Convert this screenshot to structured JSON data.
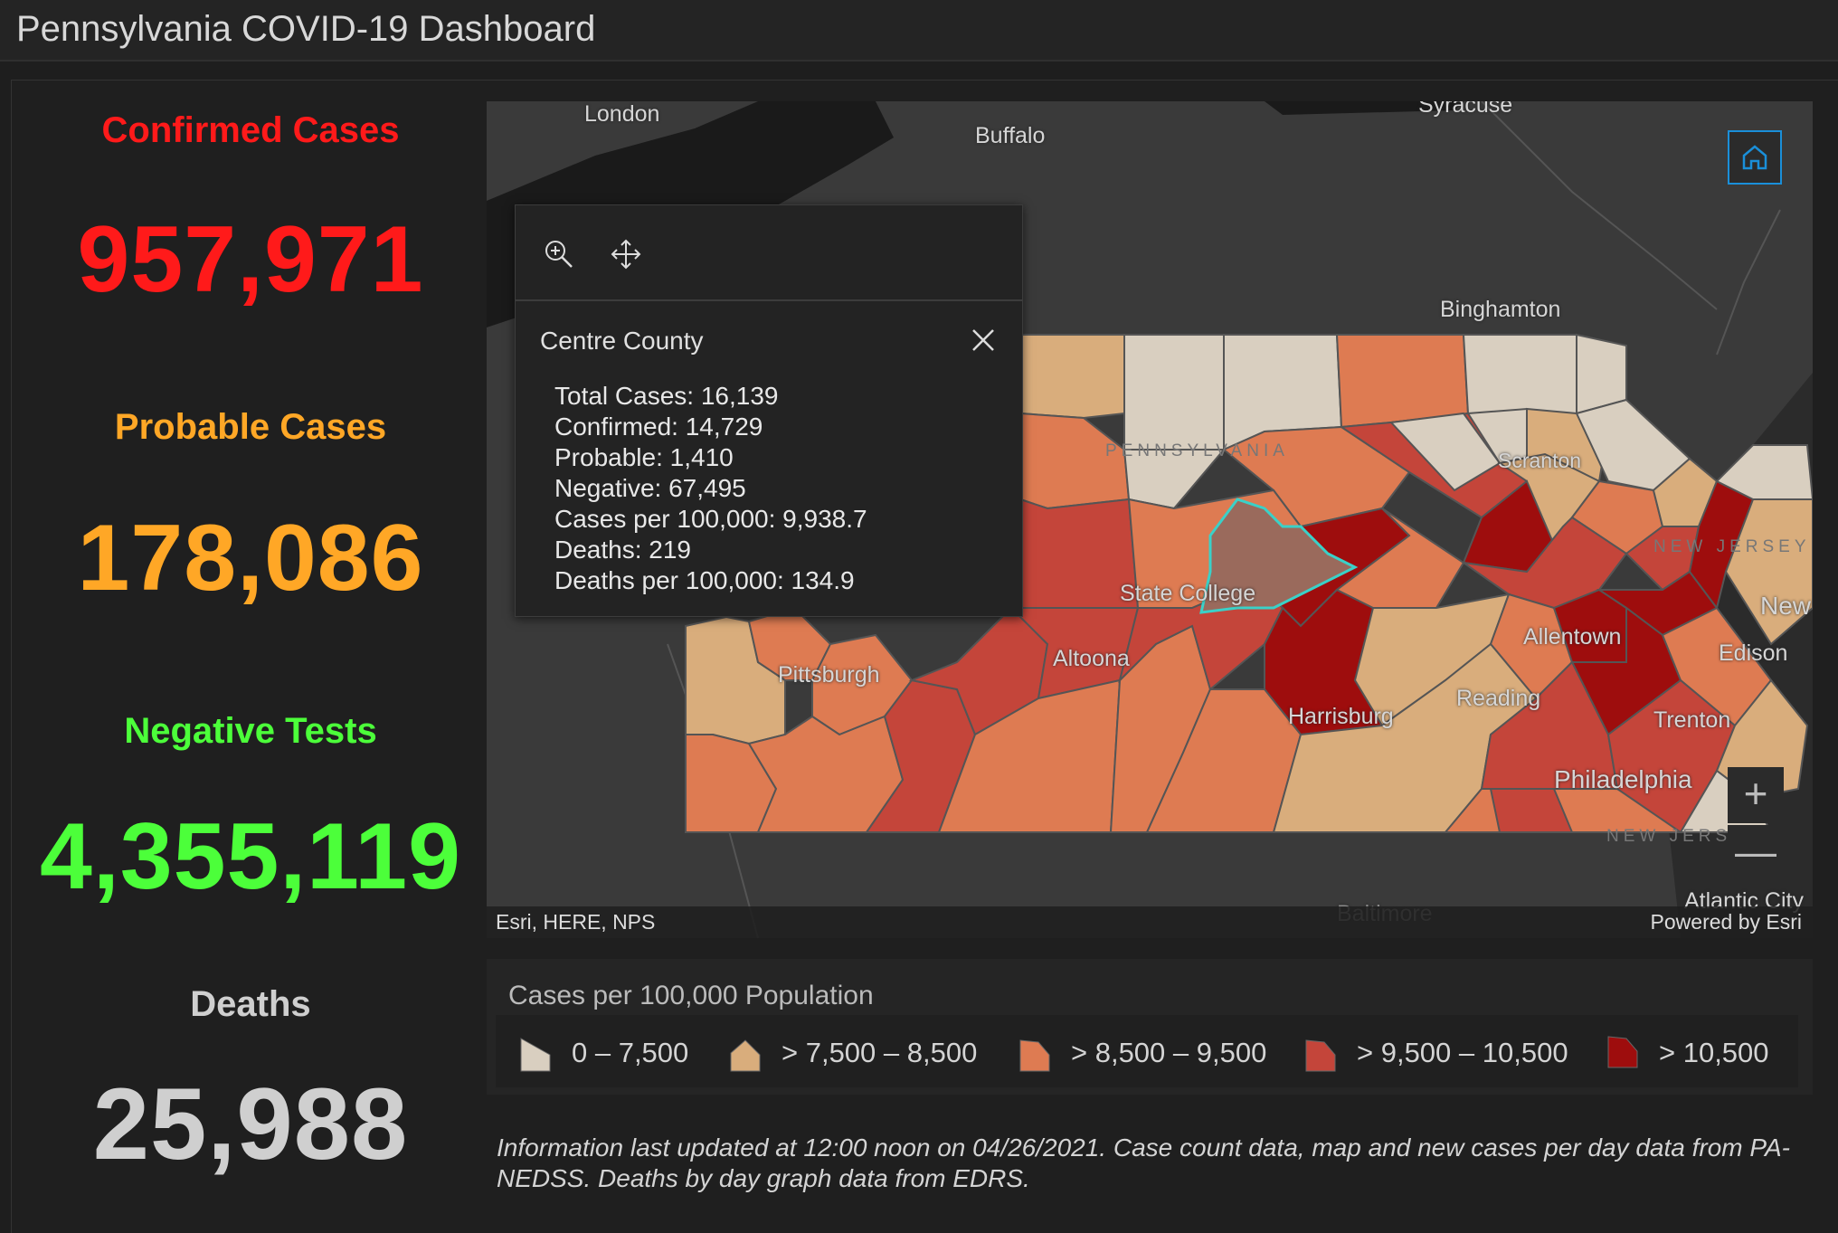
{
  "app": {
    "title": "Pennsylvania COVID-19 Dashboard"
  },
  "stats": {
    "confirmed": {
      "label": "Confirmed Cases",
      "value": "957,971",
      "color": "#ff1a1a"
    },
    "probable": {
      "label": "Probable Cases",
      "value": "178,086",
      "color": "#ffa726"
    },
    "negative": {
      "label": "Negative Tests",
      "value": "4,355,119",
      "color": "#4cff3a"
    },
    "deaths": {
      "label": "Deaths",
      "value": "25,988",
      "color": "#cfcfcf"
    }
  },
  "map": {
    "cities": {
      "london": "London",
      "buffalo": "Buffalo",
      "syracuse": "Syracuse",
      "binghamton": "Binghamton",
      "scranton": "Scranton",
      "state_college": "State College",
      "altoona": "Altoona",
      "pittsburgh": "Pittsburgh",
      "allentown": "Allentown",
      "reading": "Reading",
      "harrisburg": "Harrisburg",
      "philadelphia": "Philadelphia",
      "trenton": "Trenton",
      "edison": "Edison",
      "new": "New",
      "atlantic_city": "Atlantic City",
      "baltimore": "Baltimore"
    },
    "state_labels": {
      "new_jersey": "NEW JERSEY",
      "new_jersey_2": "NEW JERS",
      "pennsylvania": "PENNSYLVANIA"
    },
    "attribution": "Esri, HERE, NPS",
    "powered_by": "Powered by Esri",
    "zoom_in": "+",
    "zoom_out": "—",
    "icons": [
      "home-icon",
      "zoom-in-icon",
      "zoom-out-icon"
    ]
  },
  "popup": {
    "title": "Centre County",
    "rows": [
      "Total Cases: 16,139",
      "Confirmed: 14,729",
      "Probable: 1,410",
      "Negative: 67,495",
      "Cases per 100,000: 9,938.7",
      "Deaths: 219",
      "Deaths per 100,000: 134.9"
    ],
    "icons": [
      "magnify-icon",
      "pan-icon",
      "close-icon"
    ]
  },
  "legend": {
    "title": "Cases per 100,000 Population",
    "items": [
      {
        "label": "0 – 7,500",
        "color": "#d9cfc0"
      },
      {
        "label": "> 7,500 – 8,500",
        "color": "#d9ad7c"
      },
      {
        "label": "> 8,500 – 9,500",
        "color": "#de7b52"
      },
      {
        "label": "> 9,500 – 10,500",
        "color": "#c4453a"
      },
      {
        "label": "> 10,500",
        "color": "#9e0d0d"
      }
    ]
  },
  "footnote": "Information last updated at 12:00 noon on 04/26/2021. Case count data, map and new cases per day data from PA-NEDSS.  Deaths by day graph data from EDRS."
}
